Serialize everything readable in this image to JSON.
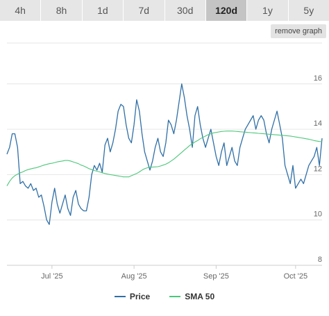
{
  "tabs": [
    {
      "label": "4h",
      "active": false
    },
    {
      "label": "8h",
      "active": false
    },
    {
      "label": "1d",
      "active": false
    },
    {
      "label": "7d",
      "active": false
    },
    {
      "label": "30d",
      "active": false
    },
    {
      "label": "120d",
      "active": true
    },
    {
      "label": "1y",
      "active": false
    },
    {
      "label": "5y",
      "active": false
    }
  ],
  "remove_graph_label": "remove graph",
  "colors": {
    "price": "#2f6fa6",
    "sma": "#4cc77a",
    "grid": "#e6e6e6",
    "axis_text": "#666666"
  },
  "chart_data": {
    "type": "line",
    "x_tick_labels": [
      "Jul '25",
      "Aug '25",
      "Sep '25",
      "Oct '25"
    ],
    "x_tick_days": [
      17,
      48,
      79,
      109
    ],
    "y_ticks": [
      8,
      10,
      12,
      14,
      16
    ],
    "ylim": [
      8,
      17.8
    ],
    "xlim": [
      0,
      119
    ],
    "grid": true,
    "legend": "bottom-center",
    "series": [
      {
        "name": "Price",
        "values": [
          12.9,
          13.2,
          13.8,
          13.8,
          13.2,
          11.6,
          11.7,
          11.5,
          11.4,
          11.6,
          11.3,
          11.4,
          11.0,
          11.1,
          10.6,
          10.0,
          9.8,
          10.8,
          11.4,
          10.7,
          10.3,
          10.7,
          11.1,
          10.5,
          10.2,
          11.0,
          11.3,
          10.7,
          10.5,
          10.4,
          10.4,
          11.0,
          12.0,
          12.4,
          12.2,
          12.5,
          12.1,
          13.3,
          13.6,
          13.0,
          13.4,
          14.0,
          14.8,
          15.1,
          15.0,
          14.2,
          13.6,
          13.4,
          14.2,
          15.3,
          14.8,
          13.8,
          13.0,
          12.6,
          12.2,
          12.6,
          13.2,
          13.6,
          13.0,
          12.8,
          13.4,
          14.4,
          14.2,
          13.8,
          14.4,
          15.2,
          16.0,
          15.4,
          14.6,
          14.0,
          13.2,
          14.6,
          15.0,
          14.2,
          13.6,
          13.2,
          13.6,
          14.0,
          13.4,
          12.8,
          12.4,
          13.0,
          13.4,
          12.4,
          12.8,
          13.2,
          12.6,
          12.4,
          13.2,
          13.6,
          14.0,
          14.2,
          14.4,
          14.6,
          14.0,
          14.4,
          14.6,
          14.4,
          13.8,
          13.4,
          14.0,
          14.4,
          14.8,
          14.2,
          13.6,
          12.4,
          12.0,
          11.6,
          12.4,
          11.4,
          11.6,
          11.8,
          11.6,
          12.0,
          12.4,
          12.6,
          12.8,
          13.2,
          12.4,
          13.6
        ]
      },
      {
        "name": "SMA 50",
        "values": [
          11.5,
          11.7,
          11.85,
          11.95,
          12.02,
          12.08,
          12.12,
          12.18,
          12.22,
          12.25,
          12.28,
          12.3,
          12.34,
          12.38,
          12.42,
          12.45,
          12.48,
          12.5,
          12.53,
          12.56,
          12.58,
          12.6,
          12.62,
          12.62,
          12.6,
          12.56,
          12.52,
          12.48,
          12.42,
          12.38,
          12.32,
          12.26,
          12.22,
          12.18,
          12.15,
          12.12,
          12.08,
          12.05,
          12.02,
          12.0,
          11.98,
          11.96,
          11.94,
          11.92,
          11.9,
          11.9,
          11.9,
          11.95,
          12.0,
          12.05,
          12.12,
          12.2,
          12.26,
          12.3,
          12.32,
          12.33,
          12.34,
          12.35,
          12.38,
          12.42,
          12.46,
          12.52,
          12.6,
          12.68,
          12.78,
          12.88,
          12.98,
          13.08,
          13.18,
          13.28,
          13.36,
          13.44,
          13.5,
          13.58,
          13.64,
          13.7,
          13.76,
          13.8,
          13.84,
          13.86,
          13.88,
          13.9,
          13.91,
          13.92,
          13.92,
          13.92,
          13.91,
          13.9,
          13.89,
          13.88,
          13.87,
          13.86,
          13.85,
          13.84,
          13.83,
          13.82,
          13.81,
          13.8,
          13.79,
          13.78,
          13.77,
          13.76,
          13.75,
          13.74,
          13.73,
          13.72,
          13.71,
          13.7,
          13.68,
          13.66,
          13.64,
          13.62,
          13.6,
          13.58,
          13.56,
          13.53,
          13.5,
          13.48,
          13.46,
          13.45
        ]
      }
    ]
  }
}
